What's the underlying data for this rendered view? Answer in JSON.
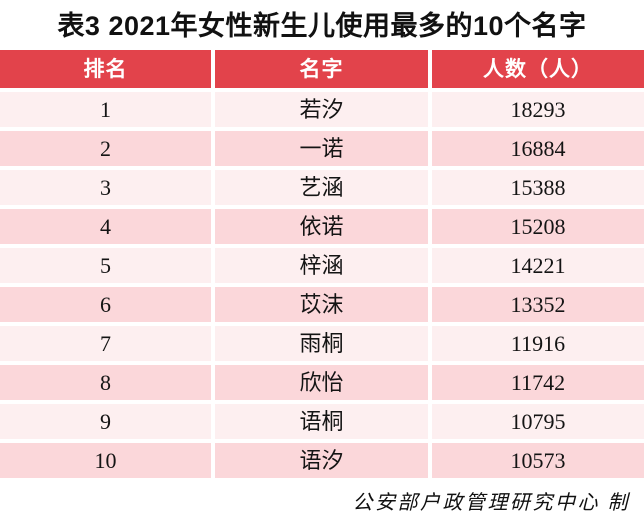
{
  "page": {
    "title": "表3 2021年女性新生儿使用最多的10个名字",
    "footer_credit": "公安部户政管理研究中心 制"
  },
  "table": {
    "columns": [
      "排名",
      "名字",
      "人数（人）"
    ],
    "rows": [
      {
        "rank": "1",
        "name": "若汐",
        "count": "18293"
      },
      {
        "rank": "2",
        "name": "一诺",
        "count": "16884"
      },
      {
        "rank": "3",
        "name": "艺涵",
        "count": "15388"
      },
      {
        "rank": "4",
        "name": "依诺",
        "count": "15208"
      },
      {
        "rank": "5",
        "name": "梓涵",
        "count": "14221"
      },
      {
        "rank": "6",
        "name": "苡沫",
        "count": "13352"
      },
      {
        "rank": "7",
        "name": "雨桐",
        "count": "11916"
      },
      {
        "rank": "8",
        "name": "欣怡",
        "count": "11742"
      },
      {
        "rank": "9",
        "name": "语桐",
        "count": "10795"
      },
      {
        "rank": "10",
        "name": "语汐",
        "count": "10573"
      }
    ]
  },
  "colors": {
    "header_bg": "#e2434b",
    "header_text": "#ffffff",
    "row_odd_bg": "#fdeff0",
    "row_even_bg": "#fbd7da",
    "body_text": "#141414"
  },
  "chart_data": {
    "type": "table",
    "title": "表3 2021年女性新生儿使用最多的10个名字",
    "columns": [
      "排名",
      "名字",
      "人数（人）"
    ],
    "ranks": [
      1,
      2,
      3,
      4,
      5,
      6,
      7,
      8,
      9,
      10
    ],
    "categories": [
      "若汐",
      "一诺",
      "艺涵",
      "依诺",
      "梓涵",
      "苡沫",
      "雨桐",
      "欣怡",
      "语桐",
      "语汐"
    ],
    "values": [
      18293,
      16884,
      15388,
      15208,
      14221,
      13352,
      11916,
      11742,
      10795,
      10573
    ],
    "source_note": "公安部户政管理研究中心 制",
    "layout": "zebra-striped table, red header band, white gaps between cells"
  }
}
